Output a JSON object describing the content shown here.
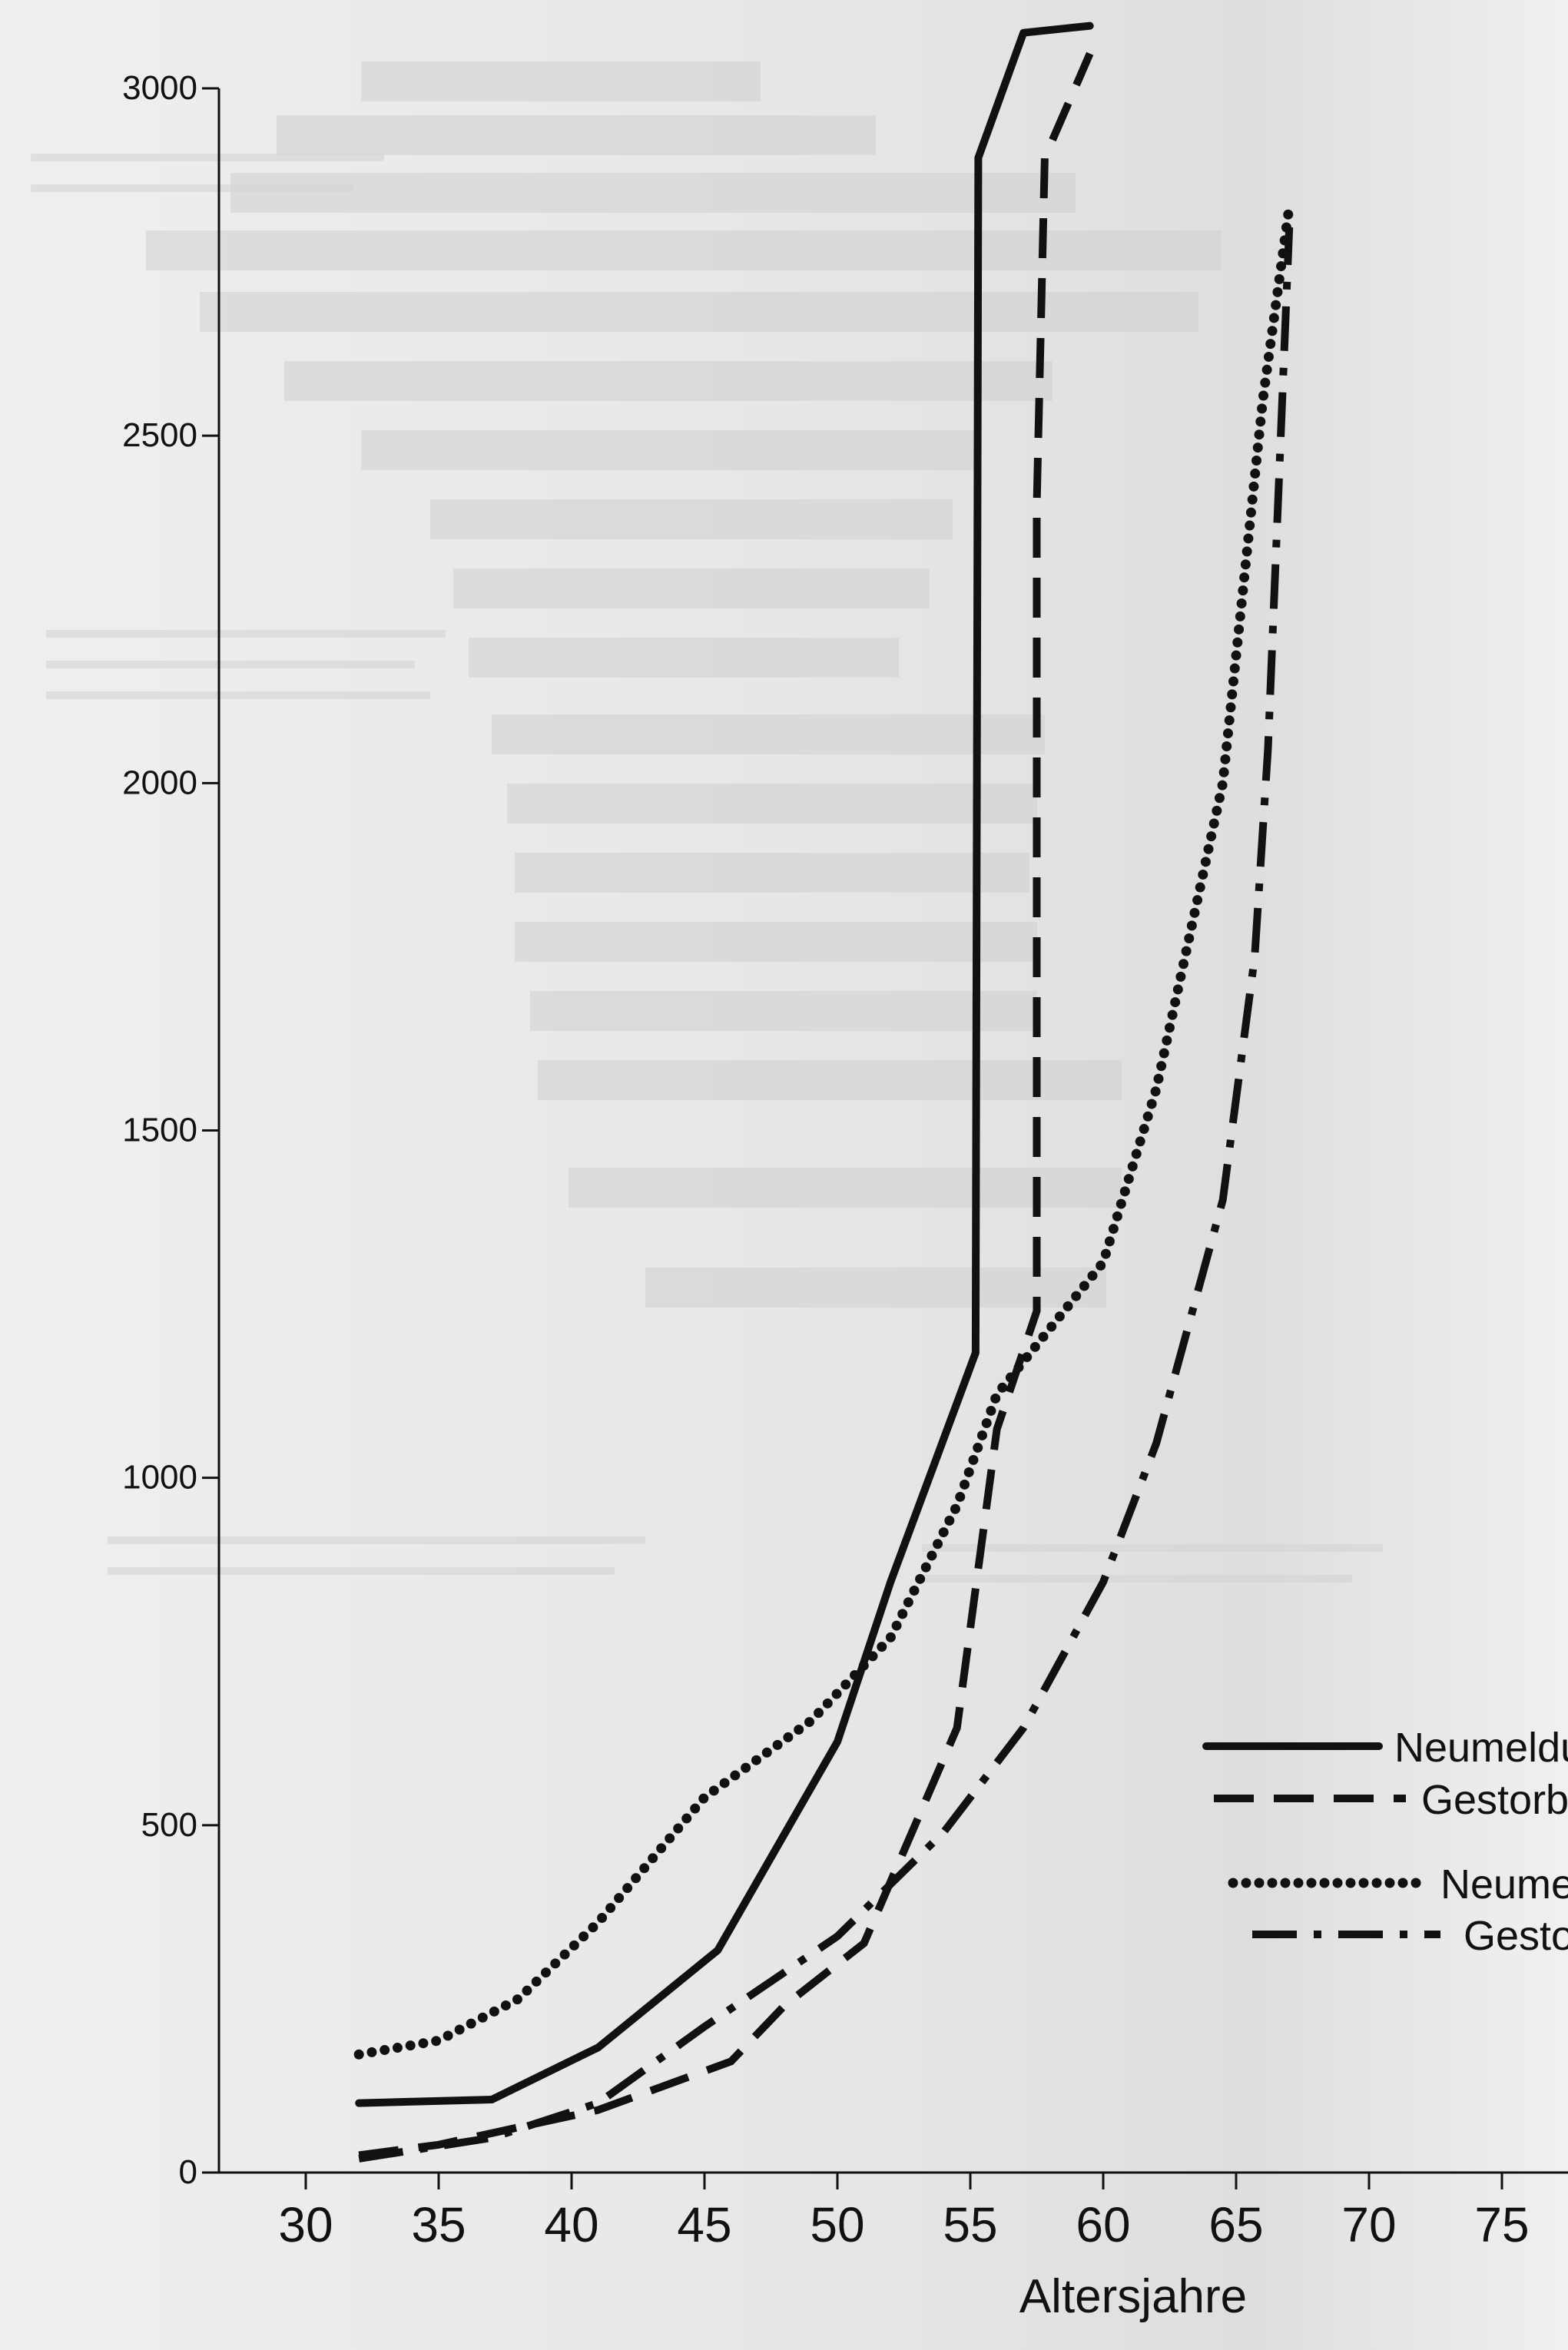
{
  "chart_data": {
    "type": "line",
    "title": "",
    "xlabel": "Altersjahre",
    "ylabel": "",
    "xlim": [
      27,
      80
    ],
    "ylim": [
      0,
      3000
    ],
    "x_ticks": [
      "30",
      "35",
      "40",
      "45",
      "50",
      "55",
      "60",
      "65",
      "70",
      "75"
    ],
    "y_ticks": [
      "0",
      "500",
      "1000",
      "1500",
      "2000",
      "2500",
      "3000"
    ],
    "grid": false,
    "legend_position": "bottom-right",
    "series": [
      {
        "name": "Neumeldun",
        "style": "solid",
        "points": [
          [
            32,
            100
          ],
          [
            37,
            105
          ],
          [
            41,
            180
          ],
          [
            45.5,
            320
          ],
          [
            50,
            620
          ],
          [
            52,
            850
          ],
          [
            55.2,
            1180
          ],
          [
            55.3,
            2900
          ],
          [
            57,
            3080
          ],
          [
            59.5,
            3090
          ]
        ]
      },
      {
        "name": "Gestorbe",
        "style": "dashed",
        "points": [
          [
            32,
            25
          ],
          [
            35,
            40
          ],
          [
            41,
            90
          ],
          [
            46,
            160
          ],
          [
            48,
            240
          ],
          [
            51,
            330
          ],
          [
            54.5,
            640
          ],
          [
            56,
            1070
          ],
          [
            57.5,
            1240
          ],
          [
            57.5,
            2400
          ],
          [
            57.8,
            2900
          ],
          [
            59.5,
            3050
          ]
        ]
      },
      {
        "name": "Neumel",
        "style": "dotted",
        "points": [
          [
            32,
            170
          ],
          [
            35,
            190
          ],
          [
            38,
            250
          ],
          [
            41,
            360
          ],
          [
            45,
            540
          ],
          [
            49,
            650
          ],
          [
            52,
            770
          ],
          [
            54.5,
            960
          ],
          [
            56,
            1120
          ],
          [
            60,
            1310
          ],
          [
            62,
            1560
          ],
          [
            64.5,
            2000
          ],
          [
            66,
            2550
          ],
          [
            67,
            2830
          ]
        ]
      },
      {
        "name": "Gesto",
        "style": "dashdot",
        "points": [
          [
            32,
            20
          ],
          [
            37,
            50
          ],
          [
            41,
            100
          ],
          [
            45,
            210
          ],
          [
            50,
            340
          ],
          [
            54,
            490
          ],
          [
            57,
            640
          ],
          [
            60,
            850
          ],
          [
            62,
            1050
          ],
          [
            64.5,
            1400
          ],
          [
            65.7,
            1750
          ],
          [
            66.2,
            2050
          ],
          [
            67,
            2800
          ]
        ]
      }
    ]
  }
}
